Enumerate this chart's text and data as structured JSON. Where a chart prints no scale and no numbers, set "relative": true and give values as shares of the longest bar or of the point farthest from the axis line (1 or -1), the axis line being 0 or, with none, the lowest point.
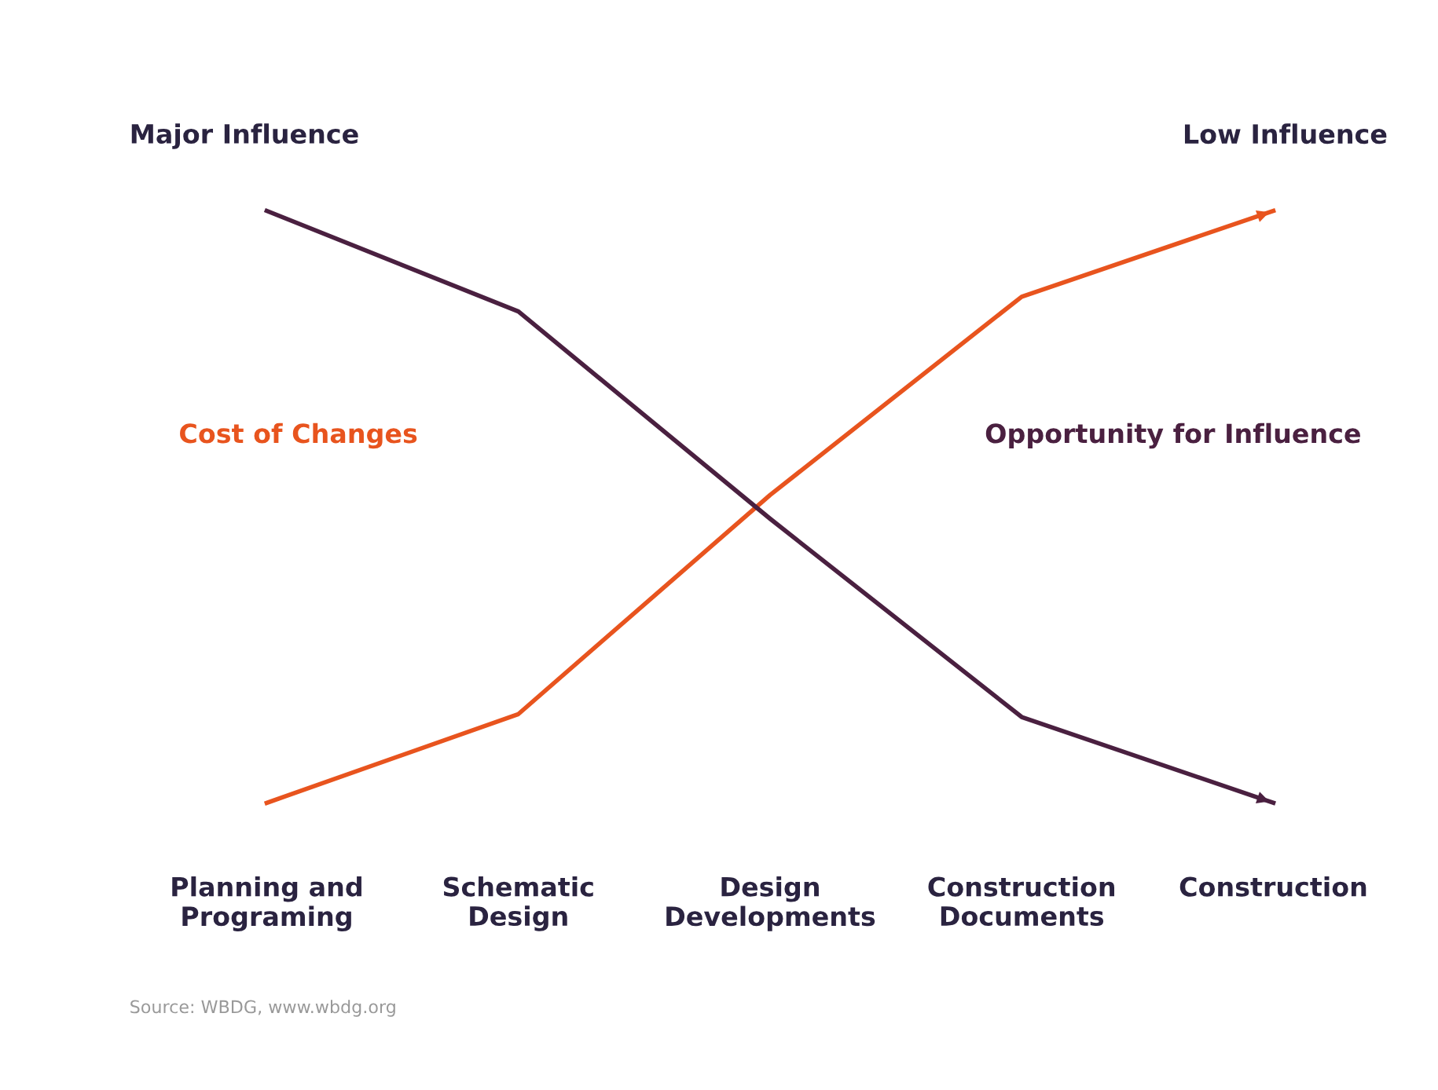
{
  "chart_data": {
    "type": "line",
    "relative": true,
    "categories": [
      "Planning and\nPrograming",
      "Schematic\nDesign",
      "Design\nDevelopments",
      "Construction\nDocuments",
      "Construction"
    ],
    "series": [
      {
        "name": "Cost of Changes",
        "color": "#e8541e",
        "values": [
          0,
          0.15,
          0.52,
          0.855,
          1
        ]
      },
      {
        "name": "Opportunity for Influence",
        "color": "#4a2040",
        "values": [
          1,
          0.83,
          0.48,
          0.145,
          0
        ]
      }
    ],
    "annotations": [
      "Major Influence",
      "Low Influence",
      "Source: WBDG, www.wbdg.org"
    ],
    "grid": false,
    "legend": false
  }
}
